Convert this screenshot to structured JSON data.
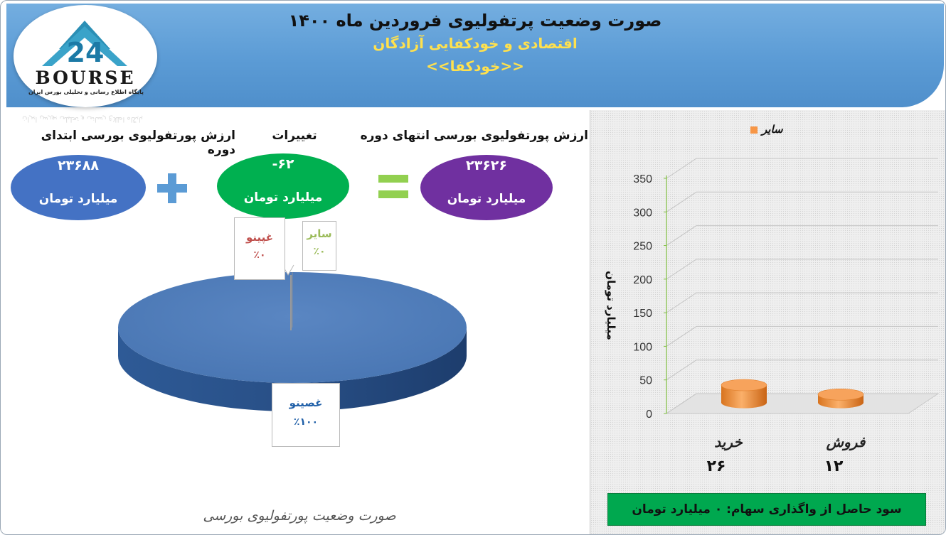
{
  "header": {
    "title": "صورت وضعیت پرتفولیوی فروردین ماه ۱۴۰۰",
    "subtitle": "اقتصادی و خودکفایی آزادگان",
    "symbol": "<<خودکفا>>",
    "logo_text": "BOURSE",
    "logo_subtext": "پایگاه اطلاع رسانی و تحلیلی بورس ایران",
    "logo_mark": "24"
  },
  "summary": {
    "start_label": "ارزش پورتفولیوی بورسی ابتدای دوره",
    "start_value": "۲۳۶۸۸",
    "start_unit": "میلیارد تومان",
    "change_label": "تغییرات",
    "change_value": "-۶۲",
    "change_unit": "میلیارد تومان",
    "end_label": "ارزش پورتفولیوی بورسی انتهای دوره",
    "end_value": "۲۳۶۲۶",
    "end_unit": "میلیارد تومان",
    "plus_sign": "+",
    "equals_sign": "=",
    "colors": {
      "start": "#4472c4",
      "change": "#00b050",
      "end": "#7030a0",
      "operator": "#5b9bd5",
      "equals": "#92d050"
    }
  },
  "footer": {
    "profit_text": "سود حاصل از واگذاری سهام:  ۰  میلیارد تومان",
    "caption": "صورت وضعیت پورتفولیوی بورسی"
  },
  "chart_data": [
    {
      "type": "pie",
      "title": "",
      "slices": [
        {
          "name": "غصینو",
          "value": 100,
          "label": "٪۱۰۰",
          "color": "#4f81bd",
          "label_color": "#1f5fa8"
        },
        {
          "name": "غپینو",
          "value": 0,
          "label": "٪۰",
          "color": "#c0504d",
          "label_color": "#c0504d"
        },
        {
          "name": "سایر",
          "value": 0,
          "label": "٪۰",
          "color": "#9bbb59",
          "label_color": "#9bbb59"
        }
      ]
    },
    {
      "type": "bar",
      "title": "",
      "legend": {
        "entries": [
          "سایر"
        ],
        "placement": "top",
        "color": "#f79646"
      },
      "ylabel": "میلیارد تومان",
      "ylim": [
        0,
        350
      ],
      "yticks": [
        0,
        50,
        100,
        150,
        200,
        250,
        300,
        350
      ],
      "grid": true,
      "categories": [
        "خرید",
        "فروش"
      ],
      "series": [
        {
          "name": "سایر",
          "values": [
            26,
            12
          ]
        }
      ],
      "value_labels": [
        "۲۶",
        "۱۲"
      ],
      "bar_color": "#f79646"
    }
  ]
}
